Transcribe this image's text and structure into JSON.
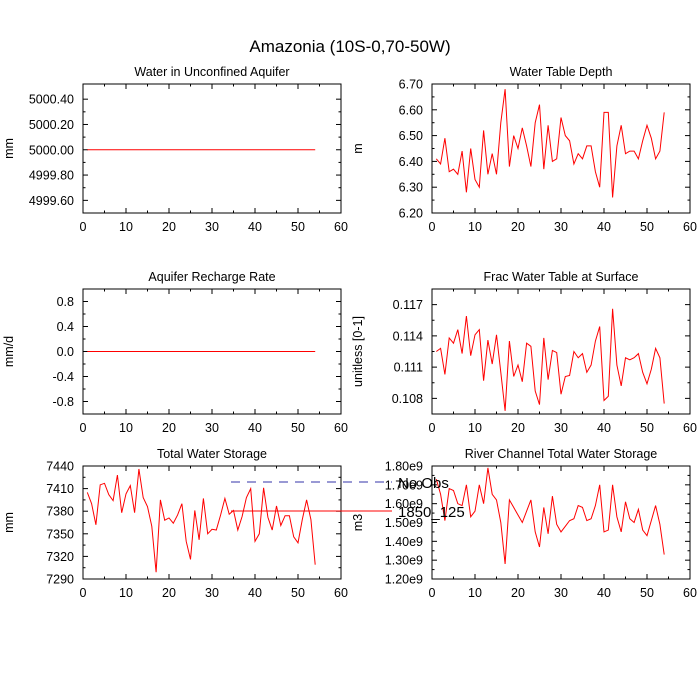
{
  "figure_title": "Amazonia (10S-0,70-50W)",
  "colors": {
    "model": "#ff0000",
    "obs": "#3333aa",
    "axis": "#000000"
  },
  "legend": {
    "obs_label": "No Obs",
    "model_label": "1850_125"
  },
  "chart_data": [
    {
      "type": "line",
      "title": "Water in Unconfined Aquifer",
      "xlabel": "",
      "ylabel": "mm",
      "xlim": [
        0,
        60
      ],
      "ylim": [
        4999.5,
        5000.52
      ],
      "xticks": [
        0,
        10,
        20,
        30,
        40,
        50,
        60
      ],
      "xtick_labels": [
        "0",
        "10",
        "20",
        "30",
        "40",
        "50",
        "60"
      ],
      "yticks": [
        4999.6,
        4999.8,
        5000.0,
        5000.2,
        5000.4
      ],
      "ytick_labels": [
        "4999.60",
        "4999.80",
        "5000.00",
        "5000.20",
        "5000.40"
      ],
      "series": [
        {
          "name": "1850_125",
          "x": [
            1,
            2,
            3,
            4,
            5,
            6,
            7,
            8,
            9,
            10,
            11,
            12,
            13,
            14,
            15,
            16,
            17,
            18,
            19,
            20,
            21,
            22,
            23,
            24,
            25,
            26,
            27,
            28,
            29,
            30,
            31,
            32,
            33,
            34,
            35,
            36,
            37,
            38,
            39,
            40,
            41,
            42,
            43,
            44,
            45,
            46,
            47,
            48,
            49,
            50,
            51,
            52,
            53,
            54
          ],
          "y": [
            5000,
            5000,
            5000,
            5000,
            5000,
            5000,
            5000,
            5000,
            5000,
            5000,
            5000,
            5000,
            5000,
            5000,
            5000,
            5000,
            5000,
            5000,
            5000,
            5000,
            5000,
            5000,
            5000,
            5000,
            5000,
            5000,
            5000,
            5000,
            5000,
            5000,
            5000,
            5000,
            5000,
            5000,
            5000,
            5000,
            5000,
            5000,
            5000,
            5000,
            5000,
            5000,
            5000,
            5000,
            5000,
            5000,
            5000,
            5000,
            5000,
            5000,
            5000,
            5000,
            5000,
            5000
          ]
        }
      ]
    },
    {
      "type": "line",
      "title": "Water Table Depth",
      "xlabel": "",
      "ylabel": "m",
      "xlim": [
        0,
        60
      ],
      "ylim": [
        6.2,
        6.7
      ],
      "xticks": [
        0,
        10,
        20,
        30,
        40,
        50,
        60
      ],
      "xtick_labels": [
        "0",
        "10",
        "20",
        "30",
        "40",
        "50",
        "60"
      ],
      "yticks": [
        6.2,
        6.3,
        6.4,
        6.5,
        6.6,
        6.7
      ],
      "ytick_labels": [
        "6.20",
        "6.30",
        "6.40",
        "6.50",
        "6.60",
        "6.70"
      ],
      "series": [
        {
          "name": "1850_125",
          "x": [
            1,
            2,
            3,
            4,
            5,
            6,
            7,
            8,
            9,
            10,
            11,
            12,
            13,
            14,
            15,
            16,
            17,
            18,
            19,
            20,
            21,
            22,
            23,
            24,
            25,
            26,
            27,
            28,
            29,
            30,
            31,
            32,
            33,
            34,
            35,
            36,
            37,
            38,
            39,
            40,
            41,
            42,
            43,
            44,
            45,
            46,
            47,
            48,
            49,
            50,
            51,
            52,
            53,
            54
          ],
          "y": [
            6.41,
            6.39,
            6.49,
            6.36,
            6.37,
            6.35,
            6.44,
            6.28,
            6.45,
            6.33,
            6.3,
            6.52,
            6.35,
            6.43,
            6.35,
            6.55,
            6.68,
            6.38,
            6.5,
            6.45,
            6.53,
            6.46,
            6.38,
            6.55,
            6.62,
            6.37,
            6.54,
            6.4,
            6.41,
            6.57,
            6.5,
            6.48,
            6.39,
            6.43,
            6.41,
            6.46,
            6.46,
            6.36,
            6.3,
            6.59,
            6.59,
            6.26,
            6.46,
            6.54,
            6.43,
            6.44,
            6.44,
            6.41,
            6.48,
            6.54,
            6.49,
            6.41,
            6.44,
            6.59
          ]
        }
      ]
    },
    {
      "type": "line",
      "title": "Aquifer Recharge Rate",
      "xlabel": "",
      "ylabel": "mm/d",
      "xlim": [
        0,
        60
      ],
      "ylim": [
        -1.0,
        1.0
      ],
      "xticks": [
        0,
        10,
        20,
        30,
        40,
        50,
        60
      ],
      "xtick_labels": [
        "0",
        "10",
        "20",
        "30",
        "40",
        "50",
        "60"
      ],
      "yticks": [
        -0.8,
        -0.4,
        0.0,
        0.4,
        0.8
      ],
      "ytick_labels": [
        "-0.8",
        "-0.4",
        "0.0",
        "0.4",
        "0.8"
      ],
      "series": [
        {
          "name": "1850_125",
          "x": [
            1,
            2,
            3,
            4,
            5,
            6,
            7,
            8,
            9,
            10,
            11,
            12,
            13,
            14,
            15,
            16,
            17,
            18,
            19,
            20,
            21,
            22,
            23,
            24,
            25,
            26,
            27,
            28,
            29,
            30,
            31,
            32,
            33,
            34,
            35,
            36,
            37,
            38,
            39,
            40,
            41,
            42,
            43,
            44,
            45,
            46,
            47,
            48,
            49,
            50,
            51,
            52,
            53,
            54
          ],
          "y": [
            0,
            0,
            0,
            0,
            0,
            0,
            0,
            0,
            0,
            0,
            0,
            0,
            0,
            0,
            0,
            0,
            0,
            0,
            0,
            0,
            0,
            0,
            0,
            0,
            0,
            0,
            0,
            0,
            0,
            0,
            0,
            0,
            0,
            0,
            0,
            0,
            0,
            0,
            0,
            0,
            0,
            0,
            0,
            0,
            0,
            0,
            0,
            0,
            0,
            0,
            0,
            0,
            0,
            0
          ]
        }
      ]
    },
    {
      "type": "line",
      "title": "Frac Water Table at Surface",
      "xlabel": "",
      "ylabel": "unitless [0-1]",
      "xlim": [
        0,
        60
      ],
      "ylim": [
        0.1065,
        0.1185
      ],
      "xticks": [
        0,
        10,
        20,
        30,
        40,
        50,
        60
      ],
      "xtick_labels": [
        "0",
        "10",
        "20",
        "30",
        "40",
        "50",
        "60"
      ],
      "yticks": [
        0.108,
        0.111,
        0.114,
        0.117
      ],
      "ytick_labels": [
        "0.108",
        "0.111",
        "0.114",
        "0.117"
      ],
      "series": [
        {
          "name": "1850_125",
          "x": [
            1,
            2,
            3,
            4,
            5,
            6,
            7,
            8,
            9,
            10,
            11,
            12,
            13,
            14,
            15,
            16,
            17,
            18,
            19,
            20,
            21,
            22,
            23,
            24,
            25,
            26,
            27,
            28,
            29,
            30,
            31,
            32,
            33,
            34,
            35,
            36,
            37,
            38,
            39,
            40,
            41,
            42,
            43,
            44,
            45,
            46,
            47,
            48,
            49,
            50,
            51,
            52,
            53,
            54
          ],
          "y": [
            0.1125,
            0.1128,
            0.1103,
            0.1138,
            0.1133,
            0.1146,
            0.1123,
            0.1159,
            0.1121,
            0.1141,
            0.1146,
            0.1097,
            0.1136,
            0.1113,
            0.1141,
            0.1105,
            0.1068,
            0.1135,
            0.1101,
            0.1112,
            0.1096,
            0.1133,
            0.113,
            0.1087,
            0.1074,
            0.1138,
            0.1098,
            0.1126,
            0.1124,
            0.1084,
            0.1101,
            0.1102,
            0.1125,
            0.1119,
            0.1123,
            0.1105,
            0.1112,
            0.1135,
            0.1149,
            0.1078,
            0.1082,
            0.1166,
            0.1112,
            0.1092,
            0.1119,
            0.1117,
            0.1119,
            0.1123,
            0.1105,
            0.1094,
            0.1108,
            0.1128,
            0.1119,
            0.1075
          ]
        }
      ]
    },
    {
      "type": "line",
      "title": "Total Water Storage",
      "xlabel": "",
      "ylabel": "mm",
      "xlim": [
        0,
        60
      ],
      "ylim": [
        7290,
        7440
      ],
      "xticks": [
        0,
        10,
        20,
        30,
        40,
        50,
        60
      ],
      "xtick_labels": [
        "0",
        "10",
        "20",
        "30",
        "40",
        "50",
        "60"
      ],
      "yticks": [
        7290,
        7320,
        7350,
        7380,
        7410,
        7440
      ],
      "ytick_labels": [
        "7290",
        "7320",
        "7350",
        "7380",
        "7410",
        "7440"
      ],
      "series": [
        {
          "name": "1850_125",
          "x": [
            1,
            2,
            3,
            4,
            5,
            6,
            7,
            8,
            9,
            10,
            11,
            12,
            13,
            14,
            15,
            16,
            17,
            18,
            19,
            20,
            21,
            22,
            23,
            24,
            25,
            26,
            27,
            28,
            29,
            30,
            31,
            32,
            33,
            34,
            35,
            36,
            37,
            38,
            39,
            40,
            41,
            42,
            43,
            44,
            45,
            46,
            47,
            48,
            49,
            50,
            51,
            52,
            53,
            54
          ],
          "y": [
            7405,
            7390,
            7362,
            7415,
            7417,
            7402,
            7394,
            7428,
            7378,
            7403,
            7414,
            7378,
            7436,
            7398,
            7386,
            7360,
            7299,
            7395,
            7368,
            7371,
            7364,
            7375,
            7390,
            7340,
            7316,
            7381,
            7342,
            7397,
            7350,
            7356,
            7355,
            7375,
            7397,
            7376,
            7381,
            7355,
            7373,
            7398,
            7410,
            7340,
            7350,
            7411,
            7372,
            7355,
            7387,
            7361,
            7374,
            7374,
            7346,
            7338,
            7369,
            7395,
            7369,
            7309
          ]
        }
      ]
    },
    {
      "type": "line",
      "title": "River Channel Total Water Storage",
      "xlabel": "",
      "ylabel": "m3",
      "xlim": [
        0,
        60
      ],
      "ylim": [
        1200000000.0,
        1800000000.0
      ],
      "xticks": [
        0,
        10,
        20,
        30,
        40,
        50,
        60
      ],
      "xtick_labels": [
        "0",
        "10",
        "20",
        "30",
        "40",
        "50",
        "60"
      ],
      "yticks": [
        1200000000.0,
        1300000000.0,
        1400000000.0,
        1500000000.0,
        1600000000.0,
        1700000000.0,
        1800000000.0
      ],
      "ytick_labels": [
        "1.20e9",
        "1.30e9",
        "1.40e9",
        "1.50e9",
        "1.60e9",
        "1.70e9",
        "1.80e9"
      ],
      "series": [
        {
          "name": "1850_125",
          "x": [
            1,
            2,
            3,
            4,
            5,
            6,
            7,
            8,
            9,
            10,
            11,
            12,
            13,
            14,
            15,
            16,
            17,
            18,
            19,
            20,
            21,
            22,
            23,
            24,
            25,
            26,
            27,
            28,
            29,
            30,
            31,
            32,
            33,
            34,
            35,
            36,
            37,
            38,
            39,
            40,
            41,
            42,
            43,
            44,
            45,
            46,
            47,
            48,
            49,
            50,
            51,
            52,
            53,
            54
          ],
          "y": [
            1730000000.0,
            1650000000.0,
            1510000000.0,
            1680000000.0,
            1670000000.0,
            1600000000.0,
            1590000000.0,
            1700000000.0,
            1530000000.0,
            1560000000.0,
            1700000000.0,
            1600000000.0,
            1790000000.0,
            1650000000.0,
            1620000000.0,
            1500000000.0,
            1280000000.0,
            1620000000.0,
            1580000000.0,
            1540000000.0,
            1500000000.0,
            1560000000.0,
            1620000000.0,
            1450000000.0,
            1370000000.0,
            1580000000.0,
            1440000000.0,
            1640000000.0,
            1490000000.0,
            1450000000.0,
            1480000000.0,
            1510000000.0,
            1520000000.0,
            1590000000.0,
            1580000000.0,
            1510000000.0,
            1520000000.0,
            1590000000.0,
            1700000000.0,
            1450000000.0,
            1460000000.0,
            1700000000.0,
            1530000000.0,
            1450000000.0,
            1610000000.0,
            1520000000.0,
            1500000000.0,
            1570000000.0,
            1460000000.0,
            1430000000.0,
            1510000000.0,
            1590000000.0,
            1490000000.0,
            1330000000.0
          ]
        }
      ]
    }
  ]
}
